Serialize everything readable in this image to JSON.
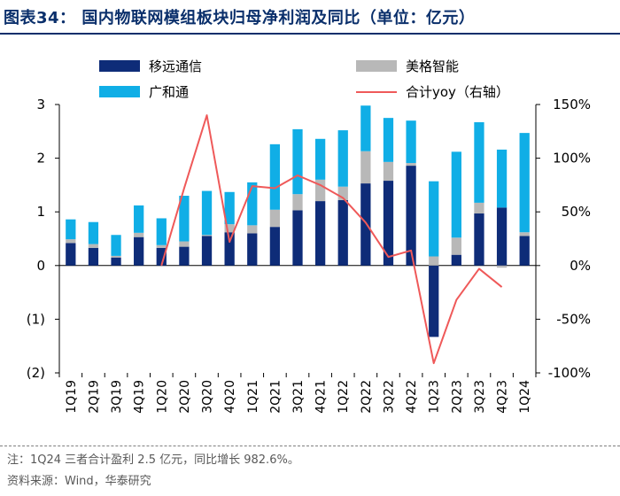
{
  "header": {
    "title": "图表34：  国内物联网模组板块归母净利润及同比（单位：亿元）"
  },
  "legend": [
    {
      "key": "cmcc",
      "label": "移远通信"
    },
    {
      "key": "meige",
      "label": "美格智能"
    },
    {
      "key": "fibocom",
      "label": "广和通"
    },
    {
      "key": "yoy",
      "label": "合计yoy（右轴）"
    }
  ],
  "colors": {
    "cmcc": "#0e2c78",
    "meige": "#b8b8b8",
    "fibocom": "#10aee6",
    "yoy": "#ef5959",
    "title": "#0a2f6b"
  },
  "chart_data": {
    "type": "bar+line",
    "title": "国内物联网模组板块归母净利润及同比（单位：亿元）",
    "categories": [
      "1Q19",
      "2Q19",
      "3Q19",
      "4Q19",
      "1Q20",
      "2Q20",
      "3Q20",
      "4Q20",
      "1Q21",
      "2Q21",
      "3Q21",
      "4Q21",
      "1Q22",
      "2Q22",
      "3Q22",
      "4Q22",
      "1Q23",
      "2Q23",
      "3Q23",
      "4Q23",
      "1Q24"
    ],
    "series": [
      {
        "name": "移远通信",
        "key": "cmcc",
        "kind": "bar",
        "axis": "left",
        "values": [
          0.42,
          0.33,
          0.15,
          0.53,
          0.33,
          0.35,
          0.55,
          0.62,
          0.6,
          0.72,
          1.03,
          1.2,
          1.22,
          1.53,
          1.58,
          1.86,
          -1.33,
          0.2,
          0.97,
          1.08,
          0.55
        ]
      },
      {
        "name": "美格智能",
        "key": "meige",
        "kind": "bar",
        "axis": "left",
        "values": [
          0.07,
          0.07,
          0.03,
          0.08,
          0.05,
          0.1,
          0.02,
          0.15,
          0.15,
          0.32,
          0.3,
          0.4,
          0.25,
          0.6,
          0.35,
          0.05,
          0.17,
          0.32,
          0.2,
          -0.04,
          0.07
        ]
      },
      {
        "name": "广和通",
        "key": "fibocom",
        "kind": "bar",
        "axis": "left",
        "values": [
          0.37,
          0.41,
          0.39,
          0.51,
          0.5,
          0.85,
          0.82,
          0.6,
          0.8,
          1.22,
          1.21,
          0.76,
          1.05,
          0.85,
          0.82,
          0.79,
          1.4,
          1.6,
          1.5,
          1.08,
          1.85
        ]
      },
      {
        "name": "合计yoy（右轴）",
        "key": "yoy",
        "kind": "line",
        "axis": "right",
        "values": [
          null,
          null,
          null,
          null,
          0,
          72,
          140,
          22,
          74,
          72,
          84,
          75,
          63,
          40,
          8,
          14,
          -91,
          -32,
          -3,
          -20,
          null
        ]
      }
    ],
    "y_left": {
      "min": -2,
      "max": 3,
      "ticks": [
        3,
        2,
        1,
        0,
        -1,
        -2
      ],
      "tick_labels": [
        "3",
        "2",
        "1",
        "0",
        "(1)",
        "(2)"
      ]
    },
    "y_right": {
      "min": -100,
      "max": 150,
      "ticks": [
        150,
        100,
        50,
        0,
        -50,
        -100
      ],
      "tick_labels": [
        "150%",
        "100%",
        "50%",
        "0%",
        "-50%",
        "-100%"
      ]
    }
  },
  "footer": {
    "note": "注：1Q24 三者合计盈利 2.5 亿元，同比增长 982.6%。",
    "source": "资料来源：Wind，华泰研究"
  }
}
